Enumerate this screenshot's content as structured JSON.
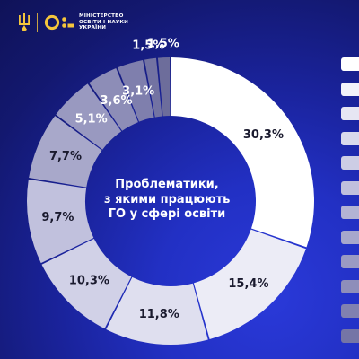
{
  "header": {
    "ministry_lines": [
      "МІНІСТЕРСТВО",
      "ОСВІТИ І НАУКИ",
      "УКРАЇНИ"
    ]
  },
  "chart_data": {
    "type": "pie",
    "donut": true,
    "title_lines": [
      "Проблематики,",
      "з якими працюють",
      "ГО у сфері освіти"
    ],
    "values": [
      30.3,
      15.4,
      11.8,
      10.3,
      9.7,
      7.7,
      5.1,
      3.6,
      3.1,
      1.5,
      1.5
    ],
    "labels": [
      "30,3%",
      "15,4%",
      "11,8%",
      "10,3%",
      "9,7%",
      "7,7%",
      "5,1%",
      "3,6%",
      "3,1%",
      "1,5%",
      "1,5%"
    ],
    "colors": [
      "#ffffff",
      "#ececf6",
      "#dfdfef",
      "#d1d1e7",
      "#c1c1dd",
      "#a8a8ca",
      "#9999c0",
      "#8d8db7",
      "#7f7fad",
      "#7373a2",
      "#6d6d9b"
    ],
    "label_colors": [
      "#1a1a2e",
      "#1a1a2e",
      "#1a1a2e",
      "#1a1a2e",
      "#1a1a2e",
      "#1a1a2e",
      "#ffffff",
      "#ffffff",
      "#ffffff",
      "#ffffff",
      "#ffffff"
    ]
  },
  "side_tabs": {
    "colors": [
      "#ffffff",
      "#f2f2fa",
      "#e6e6f3",
      "#d9d9ec",
      "#cdcde5",
      "#c0c0dd",
      "#b3b3d4",
      "#a7a7cc",
      "#9a9ac3",
      "#8e8eba",
      "#8181b0",
      "#7575a6"
    ]
  }
}
